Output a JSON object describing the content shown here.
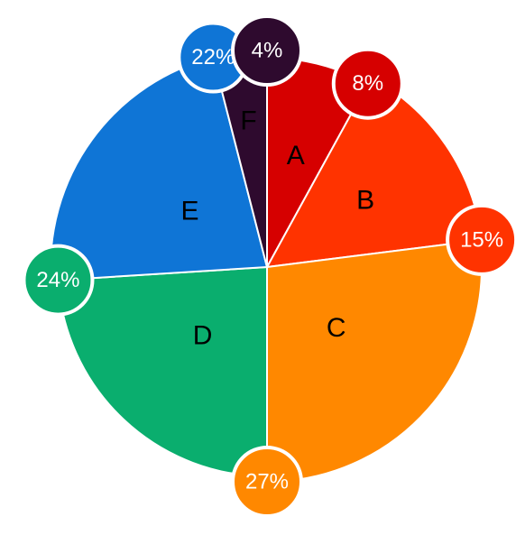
{
  "chart_data": {
    "type": "pie",
    "title": "",
    "categories": [
      "A",
      "B",
      "C",
      "D",
      "E",
      "F"
    ],
    "values": [
      8,
      15,
      27,
      24,
      22,
      4
    ],
    "value_labels": [
      "8%",
      "15%",
      "27%",
      "24%",
      "22%",
      "4%"
    ],
    "unit": "%",
    "start_angle_deg": 0,
    "direction": "clockwise",
    "colors": [
      "#D60000",
      "#FF3300",
      "#FF8800",
      "#0AAE6E",
      "#0F75D6",
      "#2E0A2E"
    ],
    "label_text_colors": [
      "#ffffff",
      "#000000",
      "#000000",
      "#000000",
      "#000000",
      "#ffffff"
    ],
    "radius_variation": "slices drawn with varying radii",
    "legend": "none",
    "grid": false
  }
}
